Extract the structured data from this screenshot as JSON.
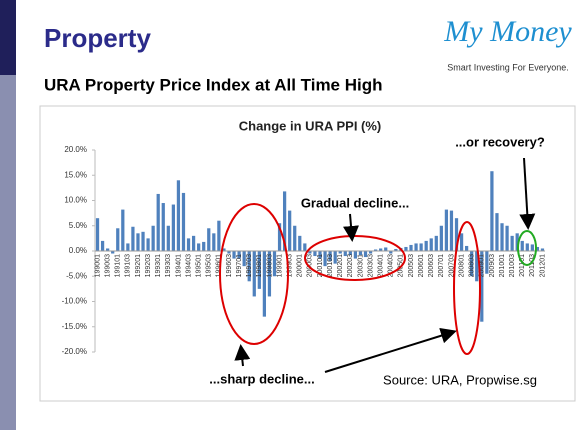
{
  "slide": {
    "title": "Property",
    "subtitle": "URA Property Price Index at All Time High",
    "logo_name": "My Money",
    "logo_tagline": "Smart Investing For Everyone."
  },
  "chart_data": {
    "type": "bar",
    "title": "Change in URA PPI (%)",
    "categories": [
      "199001",
      null,
      "199003",
      null,
      "199101",
      null,
      "199103",
      null,
      "199201",
      null,
      "199203",
      null,
      "199301",
      null,
      "199303",
      null,
      "199401",
      null,
      "199403",
      null,
      "199501",
      null,
      "199503",
      null,
      "199601",
      null,
      "199603",
      null,
      "199701",
      null,
      "199703",
      null,
      "199801",
      null,
      "199803",
      null,
      "199901",
      null,
      "199903",
      null,
      "200001",
      null,
      "200003",
      null,
      "200101",
      null,
      "200103",
      null,
      "200201",
      null,
      "200203",
      null,
      "200301",
      null,
      "200303",
      null,
      "200401",
      null,
      "200403",
      null,
      "200501",
      null,
      "200503",
      null,
      "200601",
      null,
      "200603",
      null,
      "200701",
      null,
      "200703",
      null,
      "200801",
      null,
      "200803",
      null,
      "200901",
      null,
      "200903",
      null,
      "201001",
      null,
      "201003",
      null,
      "201101",
      null,
      "201103",
      null,
      "201201"
    ],
    "values": [
      6.5,
      2.0,
      0.5,
      -0.5,
      4.5,
      8.2,
      1.5,
      4.8,
      3.5,
      3.8,
      2.5,
      5.0,
      11.3,
      9.5,
      5.0,
      9.2,
      14.0,
      11.5,
      2.5,
      3.0,
      1.5,
      1.8,
      4.5,
      3.5,
      6.0,
      0.5,
      -0.5,
      -1.5,
      -1.5,
      -3.0,
      -6.0,
      -9.0,
      -7.5,
      -13.0,
      -9.0,
      -5.0,
      5.5,
      11.8,
      8.0,
      5.0,
      3.0,
      1.5,
      -0.5,
      -1.0,
      -1.5,
      -3.0,
      -2.0,
      -2.5,
      -0.5,
      -1.0,
      -0.8,
      -1.5,
      -0.8,
      -1.2,
      -0.5,
      0.3,
      0.5,
      0.7,
      -0.5,
      0.4,
      0.6,
      0.8,
      1.2,
      1.5,
      1.5,
      2.0,
      2.5,
      3.0,
      5.0,
      8.2,
      8.0,
      6.5,
      3.5,
      1.0,
      -5.0,
      -6.0,
      -14.0,
      -4.5,
      15.8,
      7.5,
      5.5,
      5.0,
      3.0,
      3.5,
      2.0,
      1.5,
      1.3,
      0.8,
      0.5
    ],
    "color": "#4f81bd",
    "ylim": [
      -20,
      20
    ],
    "yticks": [
      {
        "value": -20,
        "label": "-20.0%"
      },
      {
        "value": -15,
        "label": "-15.0%"
      },
      {
        "value": -10,
        "label": "-10.0%"
      },
      {
        "value": -5,
        "label": "-5.0%"
      },
      {
        "value": 0,
        "label": "0.0%"
      },
      {
        "value": 5,
        "label": "5.0%"
      },
      {
        "value": 10,
        "label": "10.0%"
      },
      {
        "value": 15,
        "label": "15.0%"
      },
      {
        "value": 20,
        "label": "20.0%"
      }
    ],
    "grid": false,
    "annotations": [
      "...or recovery?",
      "Gradual decline...",
      "...sharp decline...",
      "Source: URA, Propwise.sg"
    ]
  }
}
